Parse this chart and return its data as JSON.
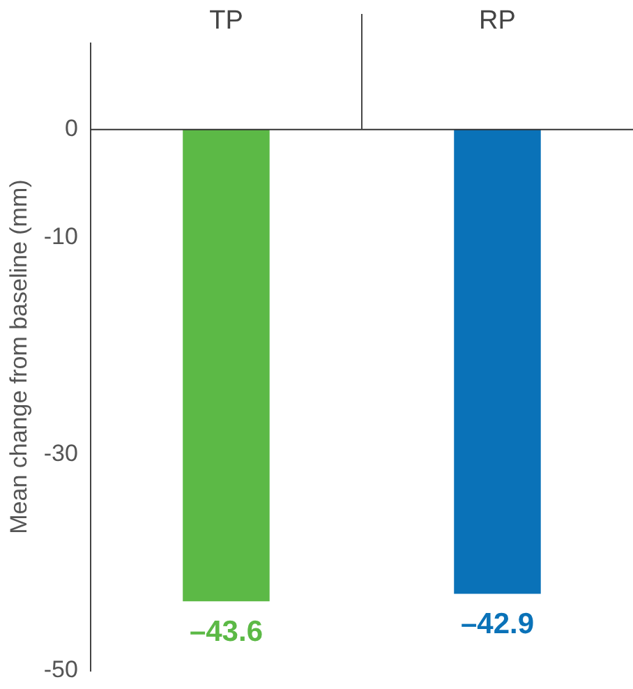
{
  "chart_data": {
    "type": "bar",
    "ylabel": "Mean change from baseline (mm)",
    "categories": [
      "TP",
      "RP"
    ],
    "values": [
      -43.6,
      -42.9
    ],
    "colors": [
      "#5cb946",
      "#0a72b8"
    ],
    "value_labels": [
      "–43.6",
      "–42.9"
    ],
    "ylim": [
      -50,
      8
    ],
    "yticks": [
      0,
      -10,
      -30,
      -50
    ]
  }
}
